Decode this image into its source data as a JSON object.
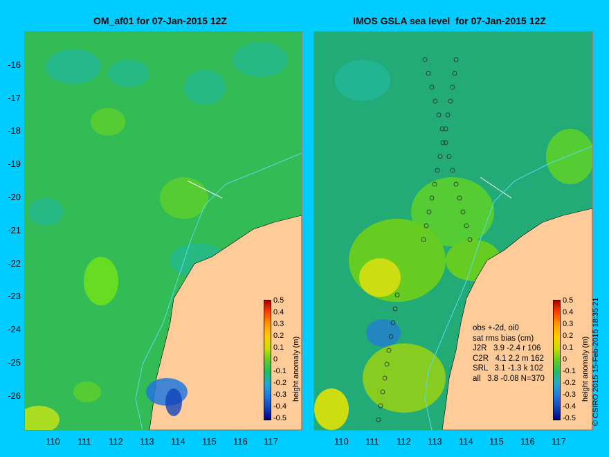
{
  "left_title": "OM_af01 for 07-Jan-2015 12Z",
  "right_title": "IMOS GSLA sea level  for 07-Jan-2015 12Z",
  "y_ticks": [
    "-16",
    "-17",
    "-18",
    "-19",
    "-20",
    "-21",
    "-22",
    "-23",
    "-24",
    "-25",
    "-26"
  ],
  "x_ticks": [
    "110",
    "111",
    "112",
    "113",
    "114",
    "115",
    "116",
    "117"
  ],
  "colorbar": {
    "title": "height anomaly (m)",
    "labels": [
      "0.5",
      "0.4",
      "0.3",
      "0.2",
      "0.1",
      "0",
      "-0.1",
      "-0.2",
      "-0.3",
      "-0.4",
      "-0.5"
    ]
  },
  "stats": {
    "line1": "obs +-2d, oi0",
    "line2": "sat rms bias (cm)",
    "line3": "J2R   3.9 -2.4 r 106",
    "line4": "C2R   4.1 2.2 m 162",
    "line5": "SRL   3.1 -1.3 k 102",
    "line6": "all   3.8 -0.08 N=370"
  },
  "credit": "© CSIRO 2015   15-Feb-2015 18:35:21",
  "colors": {
    "background": "#00ccff",
    "land": "#ffcc99",
    "ocean_base": "#33bb55"
  }
}
